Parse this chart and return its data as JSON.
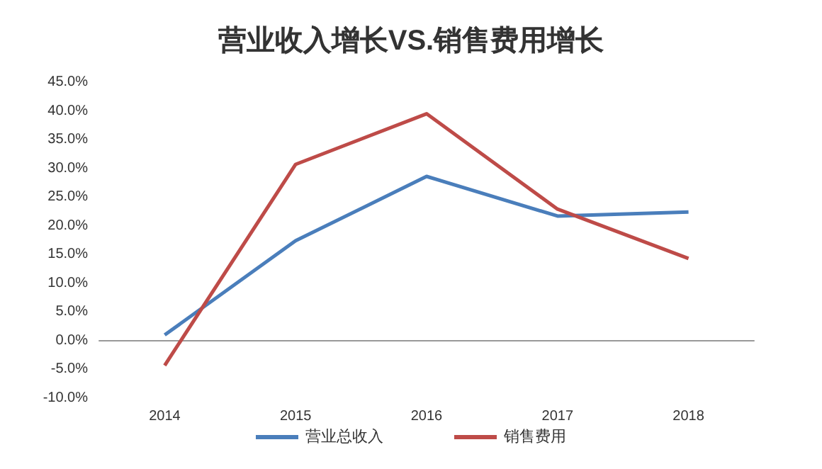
{
  "chart_data": {
    "type": "line",
    "title": "营业收入增长VS.销售费用增长",
    "categories": [
      "2014",
      "2015",
      "2016",
      "2017",
      "2018"
    ],
    "series": [
      {
        "name": "营业总收入",
        "color": "#4a7ebb",
        "values": [
          1.0,
          17.4,
          28.6,
          21.7,
          22.4
        ]
      },
      {
        "name": "销售费用",
        "color": "#be4b48",
        "values": [
          -4.3,
          30.7,
          39.5,
          22.9,
          14.3
        ]
      }
    ],
    "ylim": [
      -10,
      45
    ],
    "yticks": [
      {
        "value": -10,
        "label": "-10.0%"
      },
      {
        "value": -5,
        "label": "-5.0%"
      },
      {
        "value": 0,
        "label": "0.0%"
      },
      {
        "value": 5,
        "label": "5.0%"
      },
      {
        "value": 10,
        "label": "10.0%"
      },
      {
        "value": 15,
        "label": "15.0%"
      },
      {
        "value": 20,
        "label": "20.0%"
      },
      {
        "value": 25,
        "label": "25.0%"
      },
      {
        "value": 30,
        "label": "30.0%"
      },
      {
        "value": 35,
        "label": "35.0%"
      },
      {
        "value": 40,
        "label": "40.0%"
      },
      {
        "value": 45,
        "label": "45.0%"
      }
    ],
    "legend": "bottom",
    "marker": "none",
    "line_style": "solid"
  }
}
